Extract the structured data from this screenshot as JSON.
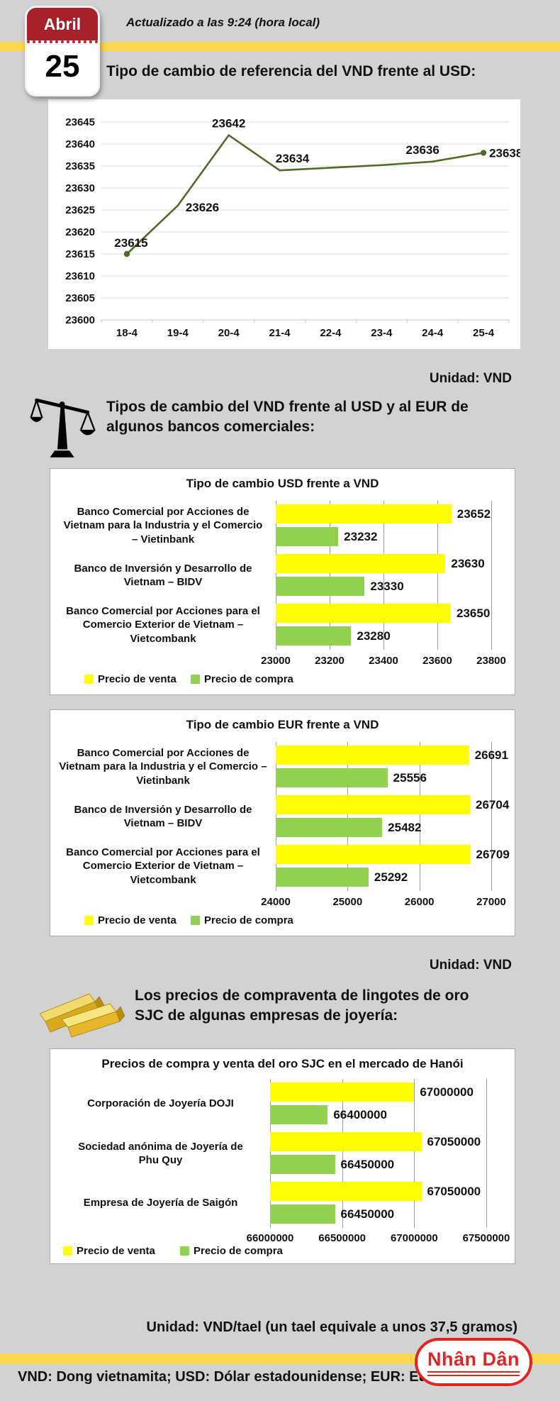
{
  "page": {
    "background": "#d2d2d2",
    "accent_yellow": "#fbd650"
  },
  "header": {
    "calendar": {
      "month": "Abril",
      "day": "25",
      "red": "#a6212a"
    },
    "updated": "Actualizado a las 9:24 (hora local)",
    "title": "Tipo de cambio de referencia del VND frente al USD:"
  },
  "sections": {
    "banks": {
      "icon": "balance-scale-icon",
      "title_line1": "Tipos de cambio del VND frente al USD y al EUR de",
      "title_line2": "algunos bancos comerciales:"
    },
    "gold": {
      "icon": "gold-bars-icon",
      "title_line1": "Los precios de compraventa de lingotes de oro",
      "title_line2": "SJC de algunas empresas de joyería:"
    }
  },
  "unit_notes": {
    "vnd_1": "Unidad: VND",
    "vnd_2": "Unidad: VND",
    "gold": "Unidad: VND/tael (un tael equivale a unos 37,5 gramos)"
  },
  "chart_data": [
    {
      "id": "reference-rate",
      "type": "line",
      "title": "",
      "x": [
        "18-4",
        "19-4",
        "20-4",
        "21-4",
        "22-4",
        "23-4",
        "24-4",
        "25-4"
      ],
      "values": [
        23615,
        23626,
        23642,
        23634,
        23634.6,
        23635.2,
        23636,
        23638
      ],
      "point_labels": [
        "23615",
        "23626",
        "23642",
        "23634",
        "",
        "",
        "23636",
        "23638"
      ],
      "ylim": [
        23600,
        23645
      ],
      "ytick_step": 5,
      "grid": true,
      "line_color": "#4f6b2a",
      "markers_at": [
        0,
        7
      ]
    },
    {
      "id": "usd-banks",
      "type": "bar",
      "title": "Tipo de cambio USD frente a VND",
      "categories": [
        [
          "Banco Comercial por Acciones de",
          "Vietnam para la Industria y el Comercio",
          "– Vietinbank"
        ],
        [
          "Banco de Inversión y Desarrollo de",
          "Vietnam – BIDV"
        ],
        [
          "Banco Comercial por Acciones para el",
          "Comercio Exterior de Vietnam –",
          "Vietcombank"
        ]
      ],
      "series": [
        {
          "name": "Precio de venta",
          "color": "#ffff00",
          "values": [
            23652,
            23630,
            23650
          ]
        },
        {
          "name": "Precio de compra",
          "color": "#92d050",
          "values": [
            23232,
            23330,
            23280
          ]
        }
      ],
      "xlim": [
        23000,
        23800
      ],
      "xtick_step": 200,
      "legend_position": "bottom-left"
    },
    {
      "id": "eur-banks",
      "type": "bar",
      "title": "Tipo de cambio EUR frente a VND",
      "categories": [
        [
          "Banco Comercial por Acciones de",
          "Vietnam para la Industria y el Comercio –",
          "Vietinbank"
        ],
        [
          "Banco de Inversión y Desarrollo de",
          "Vietnam – BIDV"
        ],
        [
          "Banco Comercial por Acciones para el",
          "Comercio Exterior de Vietnam –",
          "Vietcombank"
        ]
      ],
      "series": [
        {
          "name": "Precio de venta",
          "color": "#ffff00",
          "values": [
            26691,
            26704,
            26709
          ]
        },
        {
          "name": "Precio de compra",
          "color": "#92d050",
          "values": [
            25556,
            25482,
            25292
          ]
        }
      ],
      "xlim": [
        24000,
        27000
      ],
      "xtick_step": 1000,
      "legend_position": "bottom-left"
    },
    {
      "id": "gold-sjc",
      "type": "bar",
      "title": "Precios de compra y venta del oro SJC en el mercado de Hanói",
      "categories": [
        [
          "Corporación de Joyería DOJI"
        ],
        [
          "Sociedad anónima de Joyería de",
          "Phu Quy"
        ],
        [
          "Empresa de Joyería de Saigón"
        ]
      ],
      "series": [
        {
          "name": "Precio de venta",
          "color": "#ffff00",
          "values": [
            67000000,
            67050000,
            67050000
          ]
        },
        {
          "name": "Precio de compra",
          "color": "#92d050",
          "values": [
            66400000,
            66450000,
            66450000
          ]
        }
      ],
      "xlim": [
        66000000,
        67500000
      ],
      "xtick_step": 500000,
      "legend_position": "bottom-left"
    }
  ],
  "footer": {
    "logo": "Nhân Dân",
    "glossary": "VND: Dong vietnamita; USD: Dólar estadounidense; EUR: Euro"
  }
}
